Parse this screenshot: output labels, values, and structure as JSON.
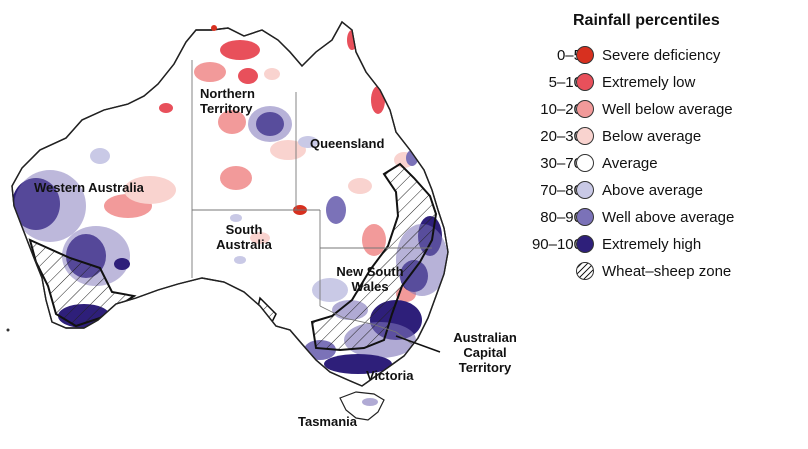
{
  "legend": {
    "title": "Rainfall percentiles",
    "items": [
      {
        "range": "0–5",
        "label": "Severe deficiency",
        "color": "#d7301f"
      },
      {
        "range": "5–10",
        "label": "Extremely low",
        "color": "#e8505b"
      },
      {
        "range": "10–20",
        "label": "Well below average",
        "color": "#f29a9a"
      },
      {
        "range": "20–30",
        "label": "Below average",
        "color": "#f9d3cf"
      },
      {
        "range": "30–70",
        "label": "Average",
        "color": "#ffffff"
      },
      {
        "range": "70–80",
        "label": "Above average",
        "color": "#c9c9e6"
      },
      {
        "range": "80–90",
        "label": "Well above average",
        "color": "#7b72b8"
      },
      {
        "range": "90–100",
        "label": "Extremely high",
        "color": "#2e1f7a"
      },
      {
        "range": "",
        "label": "Wheat–sheep zone",
        "color": "hatch"
      }
    ]
  },
  "regions": {
    "nt": "Northern\nTerritory",
    "qld": "Queensland",
    "wa": "Western Australia",
    "sa": "South\nAustralia",
    "nsw": "New South\nWales",
    "act": "Australian\nCapital\nTerritory",
    "vic": "Victoria",
    "tas": "Tasmania"
  }
}
